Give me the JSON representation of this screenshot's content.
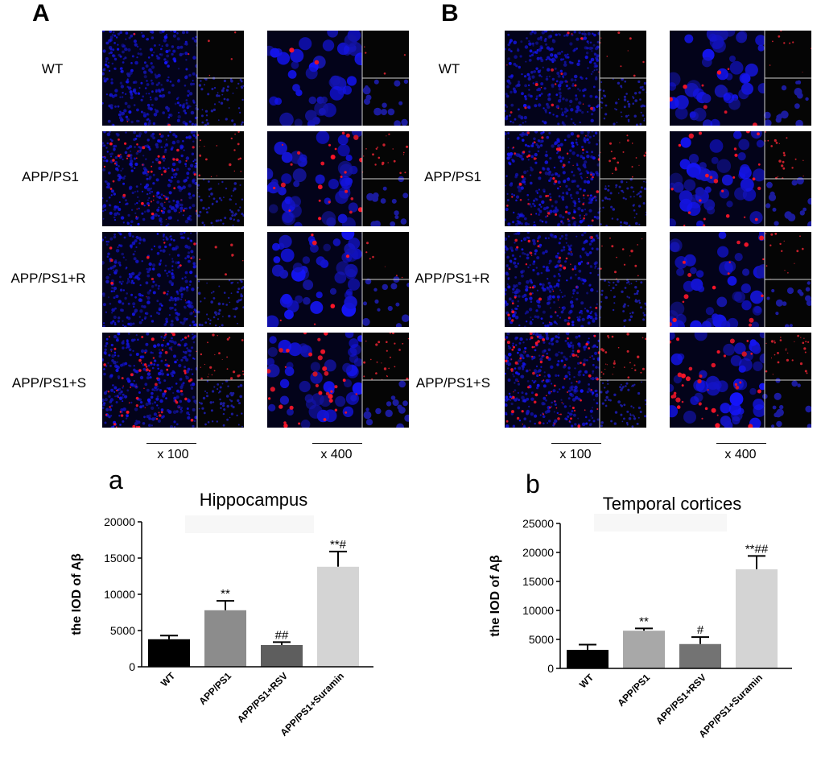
{
  "panels": [
    {
      "letter": "A",
      "rows": [
        "WT",
        "APP/PS1",
        "APP/PS1+R",
        "APP/PS1+S"
      ],
      "magnifications": [
        "x 100",
        "x 400"
      ]
    },
    {
      "letter": "B",
      "rows": [
        "WT",
        "APP/PS1",
        "APP/PS1+R",
        "APP/PS1+S"
      ],
      "magnifications": [
        "x 100",
        "x 400"
      ]
    }
  ],
  "chart_data": [
    {
      "type": "bar",
      "panel_letter": "a",
      "title": "Hippocampus",
      "ylabel": "the IOD of Aβ",
      "xlabel": "",
      "categories": [
        "WT",
        "APP/PS1",
        "APP/PS1+RSV",
        "APP/PS1+Suramin"
      ],
      "values": [
        3800,
        7800,
        3000,
        13800
      ],
      "errors": [
        500,
        1300,
        400,
        2100
      ],
      "annotations": [
        "",
        "**",
        "##",
        "**#"
      ],
      "ylim": [
        0,
        20000
      ],
      "yticks": [
        "0",
        "5000",
        "10000",
        "15000",
        "20000"
      ],
      "colors": [
        "#000000",
        "#8c8c8c",
        "#5e5e5e",
        "#d4d4d4"
      ],
      "grid": false
    },
    {
      "type": "bar",
      "panel_letter": "b",
      "title": "Temporal cortices",
      "ylabel": "the IOD of Aβ",
      "xlabel": "",
      "categories": [
        "WT",
        "APP/PS1",
        "APP/PS1+RSV",
        "APP/PS1+Suramin"
      ],
      "values": [
        3200,
        6500,
        4200,
        17100
      ],
      "errors": [
        900,
        400,
        1200,
        2300
      ],
      "annotations": [
        "",
        "**",
        "#",
        "**##"
      ],
      "ylim": [
        0,
        25000
      ],
      "yticks": [
        "0",
        "5000",
        "10000",
        "15000",
        "20000",
        "25000"
      ],
      "colors": [
        "#000000",
        "#a8a8a8",
        "#737373",
        "#d4d4d4"
      ],
      "grid": false
    }
  ]
}
